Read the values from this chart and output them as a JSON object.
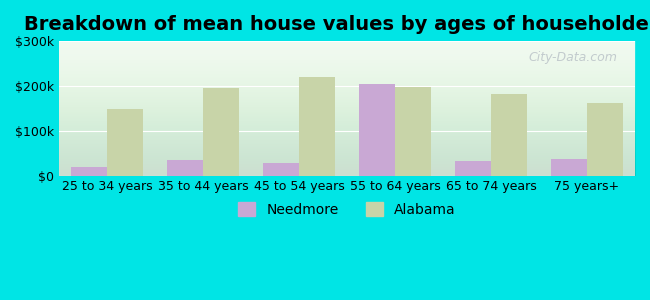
{
  "title": "Breakdown of mean house values by ages of householders",
  "categories": [
    "25 to 34 years",
    "35 to 44 years",
    "45 to 54 years",
    "55 to 64 years",
    "65 to 74 years",
    "75 years+"
  ],
  "needmore_values": [
    20000,
    35000,
    28000,
    205000,
    32000,
    38000
  ],
  "alabama_values": [
    148000,
    195000,
    220000,
    197000,
    183000,
    163000
  ],
  "needmore_color": "#c9a8d4",
  "alabama_color": "#c8d4a8",
  "background_color": "#00e5e5",
  "plot_bg_color_bottom": "#f0faf0",
  "ylim": [
    0,
    300000
  ],
  "yticks": [
    0,
    100000,
    200000,
    300000
  ],
  "ytick_labels": [
    "$0",
    "$100k",
    "$200k",
    "$300k"
  ],
  "legend_needmore": "Needmore",
  "legend_alabama": "Alabama",
  "title_fontsize": 14,
  "tick_fontsize": 9,
  "legend_fontsize": 10,
  "bar_width": 0.38,
  "figure_bg": "#00e5e5"
}
